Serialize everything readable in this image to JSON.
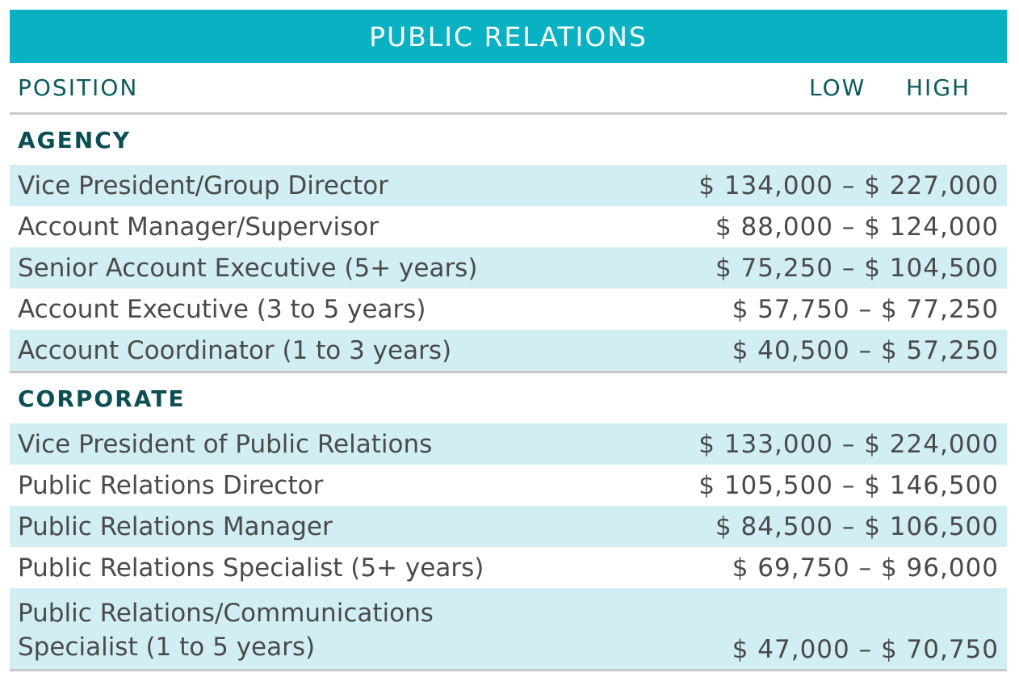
{
  "title": "PUBLIC RELATIONS",
  "columns": {
    "position": "POSITION",
    "low": "LOW",
    "high": "HIGH"
  },
  "sections": [
    {
      "name": "AGENCY",
      "rows": [
        {
          "position": "Vice President/Group Director",
          "range": "$ 134,000 – $ 227,000"
        },
        {
          "position": "Account Manager/Supervisor",
          "range": "$ 88,000 – $ 124,000"
        },
        {
          "position": "Senior Account Executive (5+ years)",
          "range": "$ 75,250 – $ 104,500"
        },
        {
          "position": "Account Executive (3 to 5 years)",
          "range": "$ 57,750 – $ 77,250"
        },
        {
          "position": "Account Coordinator (1 to 3 years)",
          "range": "$ 40,500 – $ 57,250"
        }
      ]
    },
    {
      "name": "CORPORATE",
      "rows": [
        {
          "position": "Vice President of Public Relations",
          "range": "$ 133,000 – $ 224,000"
        },
        {
          "position": "Public Relations Director",
          "range": "$ 105,500 – $ 146,500"
        },
        {
          "position": "Public Relations Manager",
          "range": "$ 84,500 – $ 106,500"
        },
        {
          "position": "Public Relations Specialist (5+ years)",
          "range": "$ 69,750 – $ 96,000"
        },
        {
          "position": "Public Relations/Communications Specialist (1 to 5 years)",
          "range": "$ 47,000 – $ 70,750",
          "line1": "Public Relations/Communications",
          "line2": "Specialist (1 to 5 years)"
        }
      ]
    }
  ],
  "colors": {
    "banner": "#08b2c2",
    "heading": "#0b5a5f",
    "shade": "#d2eef5",
    "rule": "#c9c9c9"
  }
}
